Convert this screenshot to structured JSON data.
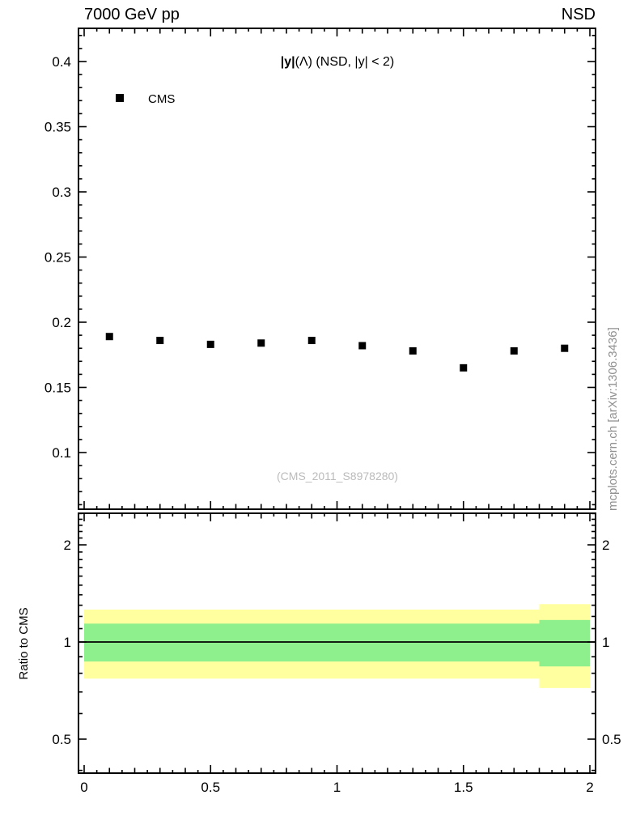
{
  "header": {
    "left": "7000 GeV pp",
    "right": "NSD"
  },
  "watermark": "(CMS_2011_S8978280)",
  "side_note": "mcplots.cern.ch [arXiv:1306.3436]",
  "colors": {
    "yellow_band": "#ffffa0",
    "green_band": "#8df08c",
    "marker": "#000000",
    "frame": "#000000",
    "watermark_gray": "#bbbbbb",
    "side_note_gray": "#909090"
  },
  "chart_data": {
    "type": "scatter",
    "title": "|y|(Λ) (NSD, |y| < 2)",
    "title_bold": "|y|",
    "title_rest": "(Λ) (NSD, |y| < 2)",
    "legend": [
      {
        "label": "CMS",
        "marker": "filled-square",
        "color": "#000000"
      }
    ],
    "legend_position": "top-left",
    "grid": false,
    "x": [
      0.1,
      0.3,
      0.5,
      0.7,
      0.9,
      1.1,
      1.3,
      1.5,
      1.7,
      1.9
    ],
    "y": [
      0.189,
      0.186,
      0.183,
      0.184,
      0.186,
      0.182,
      0.178,
      0.165,
      0.178,
      0.18
    ],
    "xlim": [
      0,
      2
    ],
    "ylim": [
      0.055,
      0.425
    ],
    "x_major_ticks": [
      0,
      0.5,
      1,
      1.5,
      2
    ],
    "x_tick_labels": [
      "0",
      "0.5",
      "1",
      "1.5",
      "2"
    ],
    "y_major_ticks": [
      0.1,
      0.15,
      0.2,
      0.25,
      0.3,
      0.35,
      0.4
    ],
    "y_tick_labels": [
      "0.1",
      "0.15",
      "0.2",
      "0.25",
      "0.3",
      "0.35",
      "0.4"
    ],
    "ratio": {
      "ylabel": "Ratio to CMS",
      "scale": "log",
      "ylim": [
        0.39,
        2.52
      ],
      "ticks": [
        0.5,
        1,
        2
      ],
      "tick_labels": [
        "0.5",
        "1",
        "2"
      ],
      "reference_line": 1,
      "bands": [
        {
          "x0": 0,
          "x1": 1.8,
          "yellow": [
            0.77,
            1.26
          ],
          "green": [
            0.87,
            1.14
          ]
        },
        {
          "x0": 1.8,
          "x1": 2.0,
          "yellow": [
            0.72,
            1.31
          ],
          "green": [
            0.84,
            1.17
          ]
        }
      ]
    }
  }
}
